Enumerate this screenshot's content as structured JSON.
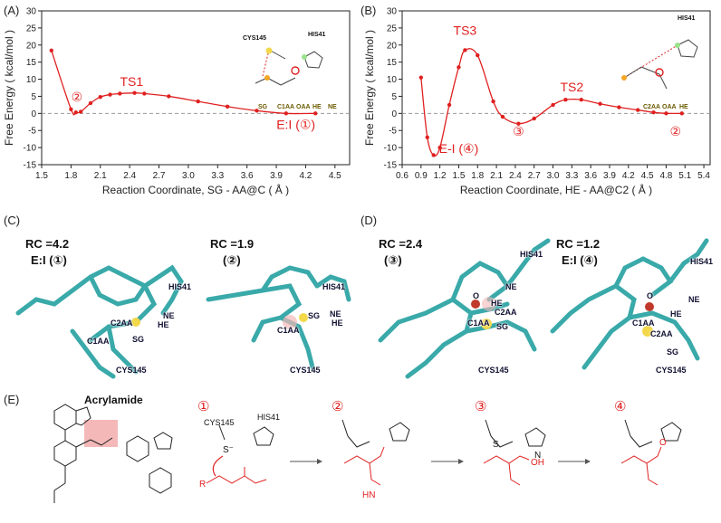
{
  "panels": {
    "A": "(A)",
    "B": "(B)",
    "C": "(C)",
    "D": "(D)",
    "E": "(E)"
  },
  "chart_data": [
    {
      "type": "line",
      "panel": "A",
      "xlabel": "Reaction Coordinate, SG - AA@C ( Å )",
      "ylabel": "Free Energy ( kcal/mol )",
      "xlim": [
        1.5,
        4.65
      ],
      "ylim": [
        -15,
        30
      ],
      "xticks": [
        "1.5",
        "1.8",
        "2.1",
        "2.4",
        "2.7",
        "3.0",
        "3.3",
        "3.6",
        "3.9",
        "4.2",
        "4.5"
      ],
      "yticks": [
        "-15",
        "-10",
        "-5",
        "0",
        "5",
        "10",
        "15",
        "20",
        "25",
        "30"
      ],
      "x": [
        1.6,
        1.8,
        1.85,
        1.9,
        2.0,
        2.1,
        2.2,
        2.3,
        2.45,
        2.55,
        2.8,
        3.1,
        3.4,
        3.7,
        4.0,
        4.3
      ],
      "y": [
        18.4,
        1.2,
        0.3,
        0.5,
        3.0,
        4.8,
        5.5,
        5.8,
        6.0,
        5.8,
        5.0,
        3.5,
        2.0,
        0.8,
        0.0,
        0.0
      ],
      "annotations": [
        {
          "text": "TS1",
          "x": 2.42,
          "y": 8.0
        },
        {
          "text": "②",
          "x": 1.86,
          "y": 3.5
        },
        {
          "text": "E:I (①)",
          "x": 4.1,
          "y": -4.5
        }
      ],
      "inset_labels": [
        "CYS145",
        "HIS41",
        "SG",
        "C1AA",
        "OAA",
        "HE",
        "NE"
      ]
    },
    {
      "type": "line",
      "panel": "B",
      "xlabel": "Reaction Coordinate, HE - AA@C2 ( Å )",
      "ylabel": "Free Energy ( kcal/mol )",
      "xlim": [
        0.6,
        5.5
      ],
      "ylim": [
        -15,
        30
      ],
      "xticks": [
        "0.6",
        "0.9",
        "1.2",
        "1.5",
        "1.8",
        "2.1",
        "2.4",
        "2.7",
        "3.0",
        "3.3",
        "3.6",
        "3.9",
        "4.2",
        "4.5",
        "4.8",
        "5.1",
        "5.4"
      ],
      "yticks": [
        "-15",
        "-10",
        "-5",
        "0",
        "5",
        "10",
        "15",
        "20",
        "25",
        "30"
      ],
      "x": [
        0.9,
        1.0,
        1.1,
        1.2,
        1.35,
        1.5,
        1.6,
        1.8,
        2.05,
        2.2,
        2.45,
        2.7,
        3.0,
        3.2,
        3.45,
        3.75,
        4.05,
        4.35,
        4.6,
        4.8,
        5.05
      ],
      "y": [
        10.5,
        -7.0,
        -12.2,
        -10.0,
        2.5,
        13.5,
        18.5,
        17.0,
        3.5,
        -1.0,
        -3.0,
        -1.5,
        2.5,
        4.0,
        4.0,
        2.8,
        1.8,
        1.0,
        0.3,
        0.0,
        0.0
      ],
      "annotations": [
        {
          "text": "TS3",
          "x": 1.6,
          "y": 23.0
        },
        {
          "text": "TS2",
          "x": 3.3,
          "y": 6.5
        },
        {
          "text": "E-I (④)",
          "x": 1.5,
          "y": -11.5
        },
        {
          "text": "③",
          "x": 2.45,
          "y": -6.5
        },
        {
          "text": "②",
          "x": 4.95,
          "y": -6.5
        }
      ],
      "inset_labels": [
        "HIS41",
        "C2AA",
        "OAA",
        "HE"
      ]
    }
  ],
  "structures": {
    "c1_rc": "RC =4.2",
    "c1_state": "E:I (①)",
    "c2_rc": "RC =1.9",
    "c2_state": "(②)",
    "d1_rc": "RC =2.4",
    "d1_state": "(③)",
    "d2_rc": "RC =1.2",
    "d2_state": "E:I (④)",
    "atom_labels": [
      "HIS41",
      "NE",
      "HE",
      "SG",
      "C1AA",
      "C2AA",
      "CYS145",
      "O"
    ]
  },
  "scheme": {
    "ligand_name": "Acrylamide",
    "steps": [
      "①",
      "②",
      "③",
      "④"
    ],
    "labels": [
      "CYS145",
      "HIS41",
      "S⁻",
      "R",
      "HN",
      "N",
      "S",
      "OH",
      "O"
    ],
    "colors": {
      "red": "#e02020",
      "highlight": "#f4b8b8"
    }
  }
}
